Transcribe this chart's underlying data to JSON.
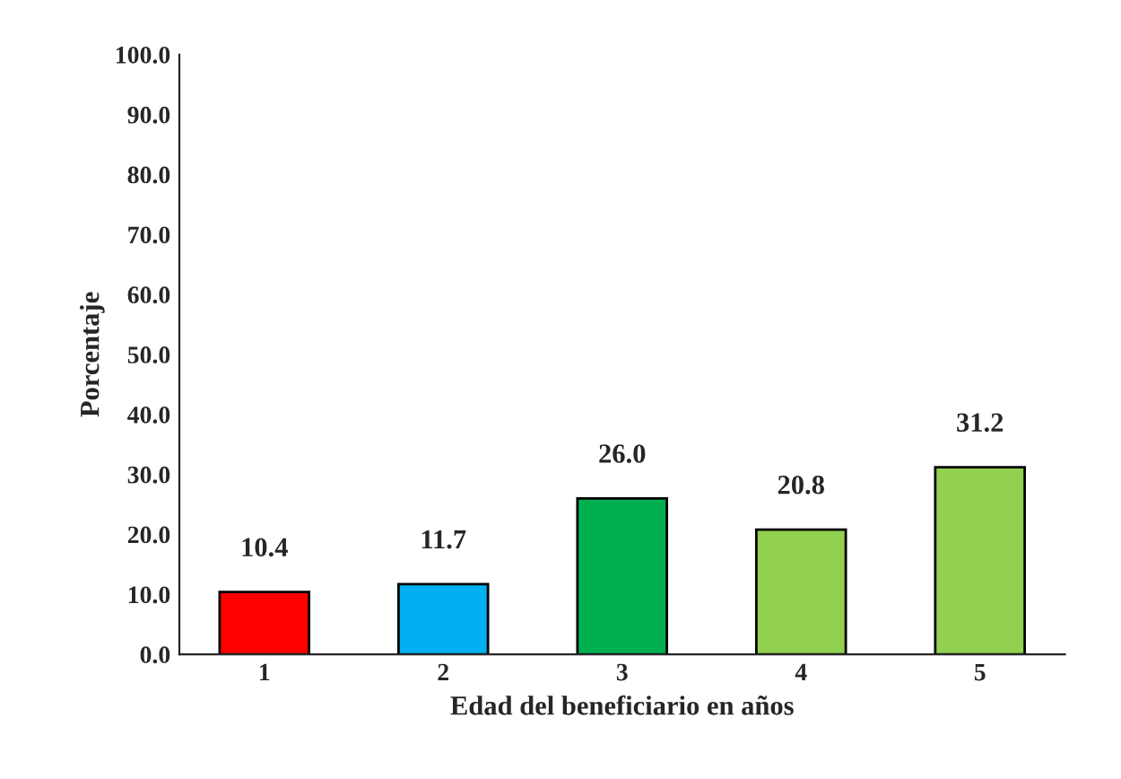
{
  "chart_data": {
    "type": "bar",
    "xlabel": "Edad del beneficiario en años",
    "ylabel": "Porcentaje",
    "categories": [
      "1",
      "2",
      "3",
      "4",
      "5"
    ],
    "values": [
      10.4,
      11.7,
      26.0,
      20.8,
      31.2
    ],
    "colors": [
      "#ff0000",
      "#00b0f0",
      "#00b050",
      "#92d050",
      "#92d050"
    ],
    "ylim": [
      0,
      100
    ],
    "yticks": [
      {
        "value": 0,
        "label": "0.0"
      },
      {
        "value": 10,
        "label": "10.0"
      },
      {
        "value": 20,
        "label": "20.0"
      },
      {
        "value": 30,
        "label": "30.0"
      },
      {
        "value": 40,
        "label": "40.0"
      },
      {
        "value": 50,
        "label": "50.0"
      },
      {
        "value": 60,
        "label": "60.0"
      },
      {
        "value": 70,
        "label": "70.0"
      },
      {
        "value": 80,
        "label": "80.0"
      },
      {
        "value": 90,
        "label": "90.0"
      },
      {
        "value": 100,
        "label": "100.0"
      }
    ],
    "value_labels": [
      "10.4",
      "11.7",
      "26.0",
      "20.8",
      "31.2"
    ],
    "grid": false,
    "legend": false
  }
}
